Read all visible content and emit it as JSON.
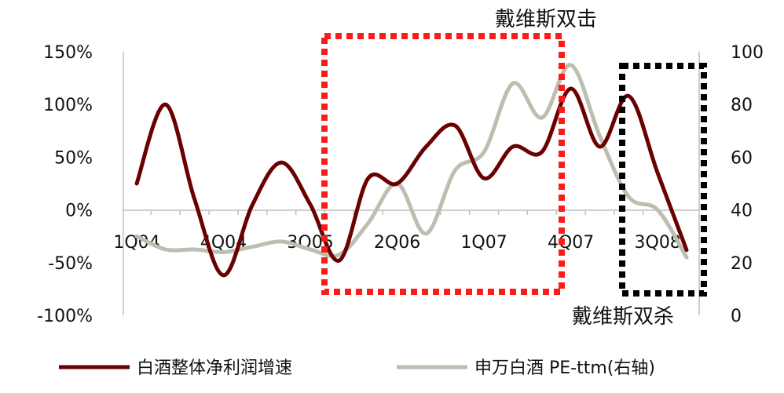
{
  "chart_data": {
    "type": "line",
    "x": [
      "1Q04",
      "2Q04",
      "3Q04",
      "4Q04",
      "1Q05",
      "2Q05",
      "3Q05",
      "4Q05",
      "1Q06",
      "2Q06",
      "3Q06",
      "4Q06",
      "1Q07",
      "2Q07",
      "3Q07",
      "4Q07",
      "1Q08",
      "2Q08",
      "3Q08",
      "4Q08"
    ],
    "x_tick_labels": [
      "1Q04",
      "4Q04",
      "3Q05",
      "2Q06",
      "1Q07",
      "4Q07",
      "3Q08"
    ],
    "left_axis": {
      "ticks": [
        "150%",
        "100%",
        "50%",
        "0%",
        "-50%",
        "-100%"
      ],
      "range": [
        -100,
        150
      ]
    },
    "right_axis": {
      "ticks": [
        "100",
        "80",
        "60",
        "40",
        "20",
        "0"
      ],
      "range": [
        0,
        100
      ]
    },
    "series": [
      {
        "name": "白酒整体净利润增速",
        "axis": "left",
        "color": "#6b0000",
        "values": [
          25,
          100,
          10,
          -62,
          5,
          45,
          5,
          -48,
          30,
          25,
          60,
          80,
          30,
          60,
          55,
          115,
          60,
          108,
          35,
          -38
        ]
      },
      {
        "name": "申万白酒 PE-ttm(右轴)",
        "axis": "right",
        "color": "#bdbdb0",
        "values": [
          30,
          25,
          25,
          24,
          26,
          28,
          25,
          23,
          35,
          50,
          31,
          55,
          62,
          88,
          75,
          95,
          68,
          45,
          40,
          22
        ]
      }
    ],
    "annotations": [
      {
        "text": "戴维斯双击",
        "box_color": "#ff0000",
        "from": "3Q05",
        "to": "4Q07"
      },
      {
        "text": "戴维斯双杀",
        "box_color": "#000000",
        "from": "2Q08",
        "to": "4Q08"
      }
    ],
    "legend_position": "bottom",
    "grid": false
  }
}
